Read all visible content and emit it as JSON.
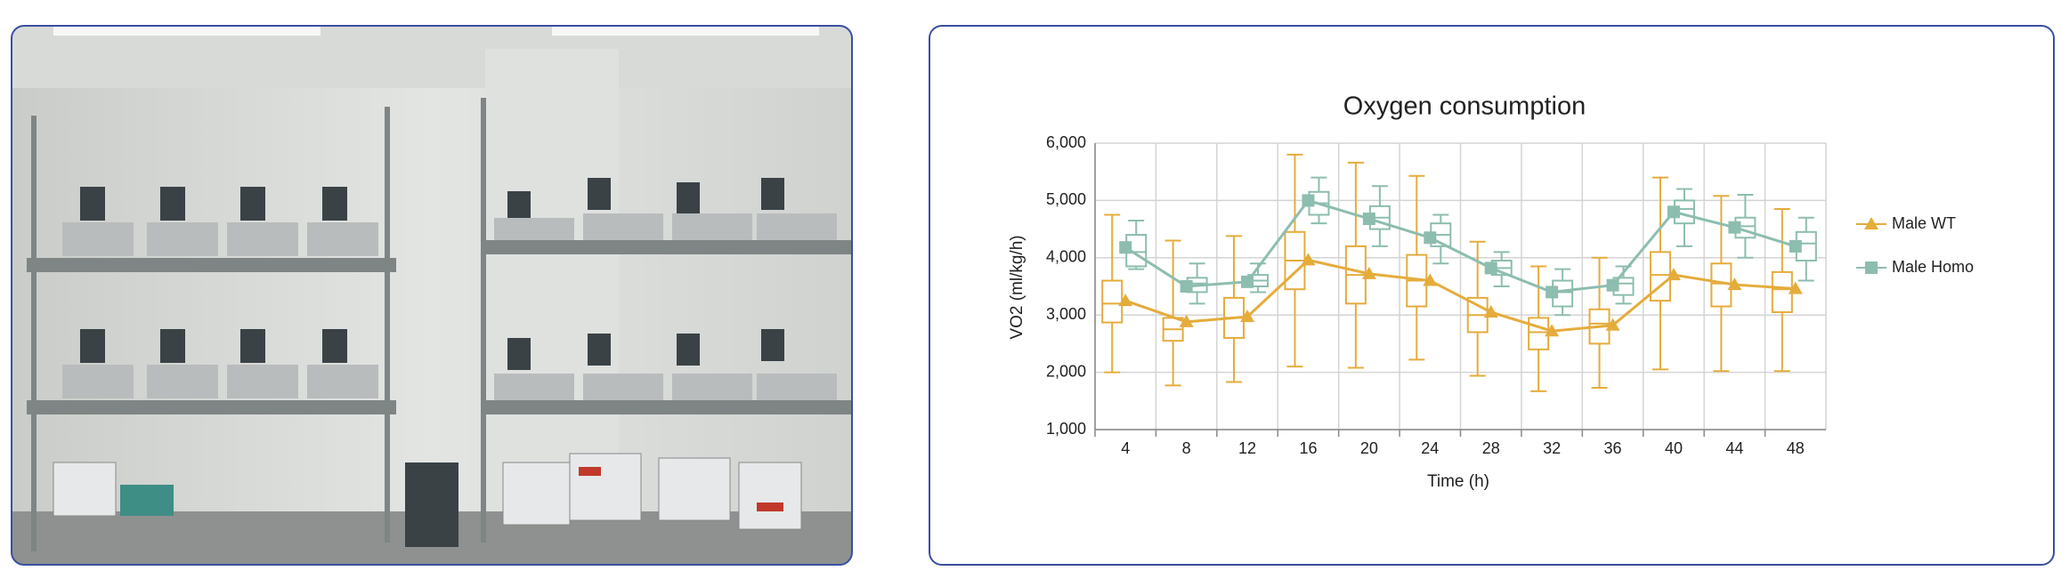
{
  "chart_data": {
    "type": "boxplot",
    "title": "Oxygen consumption",
    "x_label": "Time (h)",
    "y_label": "VO2 (ml/kg/h)",
    "x": [
      4,
      8,
      12,
      16,
      20,
      24,
      28,
      32,
      36,
      40,
      44,
      48
    ],
    "xlim": [
      2,
      50
    ],
    "xticks": [
      4,
      8,
      12,
      16,
      20,
      24,
      28,
      32,
      36,
      40,
      44,
      48
    ],
    "ylim": [
      1000,
      6000
    ],
    "yticks": [
      {
        "value": 1000,
        "label": "1,000"
      },
      {
        "value": 2000,
        "label": "2,000"
      },
      {
        "value": 3000,
        "label": "3,000"
      },
      {
        "value": 4000,
        "label": "4,000"
      },
      {
        "value": 5000,
        "label": "5,000"
      },
      {
        "value": 6000,
        "label": "6,000"
      }
    ],
    "grid": true,
    "legend": "right",
    "series": [
      {
        "name": "Male WT",
        "color": "#e5ac3c",
        "marker": "triangle",
        "values": [
          3250,
          2880,
          2970,
          3960,
          3720,
          3600,
          3050,
          2720,
          2820,
          3700,
          3530,
          3460
        ],
        "low": [
          2000,
          1770,
          1830,
          2100,
          2080,
          2220,
          1940,
          1670,
          1730,
          2050,
          2020,
          2020
        ],
        "q1": [
          2870,
          2550,
          2600,
          3450,
          3200,
          3150,
          2700,
          2400,
          2500,
          3250,
          3150,
          3050
        ],
        "median": [
          3200,
          2750,
          2950,
          3950,
          3700,
          3600,
          3000,
          2700,
          2850,
          3700,
          3550,
          3450
        ],
        "q3": [
          3600,
          2950,
          3300,
          4450,
          4200,
          4050,
          3300,
          2950,
          3100,
          4100,
          3900,
          3750
        ],
        "high": [
          4750,
          4300,
          4380,
          5800,
          5660,
          5430,
          4280,
          3850,
          4000,
          5400,
          5080,
          4850
        ]
      },
      {
        "name": "Male Homo",
        "color": "#8dbdaf",
        "marker": "square",
        "values": [
          4180,
          3500,
          3580,
          5000,
          4680,
          4350,
          3820,
          3400,
          3520,
          4800,
          4530,
          4200
        ],
        "low": [
          3800,
          3200,
          3400,
          4600,
          4200,
          3900,
          3500,
          3000,
          3200,
          4200,
          4000,
          3600
        ],
        "q1": [
          3850,
          3400,
          3500,
          4750,
          4500,
          4200,
          3700,
          3150,
          3350,
          4600,
          4350,
          3950
        ],
        "median": [
          4100,
          3550,
          3600,
          4950,
          4700,
          4400,
          3820,
          3400,
          3550,
          4850,
          4550,
          4250
        ],
        "q3": [
          4400,
          3650,
          3700,
          5150,
          4900,
          4600,
          3950,
          3600,
          3650,
          5000,
          4700,
          4450
        ],
        "high": [
          4650,
          3900,
          3900,
          5400,
          5250,
          4750,
          4100,
          3800,
          3850,
          5200,
          5100,
          4700
        ]
      }
    ]
  }
}
